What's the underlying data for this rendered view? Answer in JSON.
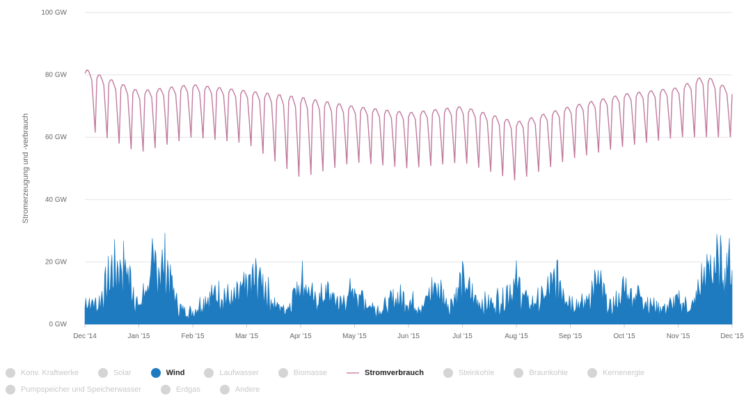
{
  "chart_data": {
    "type": "area",
    "ylabel": "Stromerzeugung und -verbrauch",
    "y_ticks": [
      "0 GW",
      "20 GW",
      "40 GW",
      "60 GW",
      "80 GW",
      "100 GW"
    ],
    "ylim": [
      0,
      100
    ],
    "x_ticks": [
      "Dec '14",
      "Jan '15",
      "Feb '15",
      "Mar '15",
      "Apr '15",
      "May '15",
      "Jun '15",
      "Jul '15",
      "Aug '15",
      "Sep '15",
      "Oct '15",
      "Nov '15",
      "Dec '15"
    ],
    "grid": true,
    "series": [
      {
        "name": "Wind",
        "kind": "area",
        "color": "#1f7bbf",
        "x_month_points": [
          0,
          0.25,
          0.5,
          0.75,
          1,
          1.25,
          1.5,
          1.75,
          2,
          2.25,
          2.5,
          2.75,
          3,
          3.25,
          3.5,
          3.75,
          4,
          4.25,
          4.5,
          4.75,
          5,
          5.25,
          5.5,
          5.75,
          6,
          6.25,
          6.5,
          6.75,
          7,
          7.25,
          7.5,
          7.75,
          8,
          8.25,
          8.5,
          8.75,
          9,
          9.25,
          9.5,
          9.75,
          10,
          10.25,
          10.5,
          10.75,
          11,
          11.25,
          11.5,
          11.75,
          12
        ],
        "values": [
          12,
          10,
          27,
          30,
          8,
          28,
          30,
          8,
          6,
          14,
          16,
          12,
          20,
          24,
          10,
          8,
          25,
          12,
          16,
          10,
          18,
          10,
          8,
          14,
          12,
          9,
          20,
          10,
          22,
          12,
          10,
          14,
          21,
          10,
          14,
          23,
          12,
          10,
          22,
          8,
          18,
          16,
          10,
          8,
          12,
          8,
          26,
          31,
          32
        ]
      },
      {
        "name": "Stromverbrauch",
        "kind": "line",
        "color": "#c0799d",
        "x_month_points": [
          0,
          1,
          2,
          3,
          4,
          5,
          6,
          7,
          8,
          9,
          10,
          11,
          11.5,
          12
        ],
        "upper_values": [
          82,
          75,
          77,
          75,
          73,
          70,
          68,
          70,
          65,
          70,
          74,
          76,
          80,
          75
        ],
        "lower_values": [
          63,
          55,
          60,
          58,
          47,
          52,
          50,
          52,
          46,
          53,
          57,
          60,
          60,
          60
        ]
      }
    ],
    "legend_position": "bottom"
  },
  "legend": {
    "items": [
      {
        "label": "Konv. Kraftwerke",
        "type": "dot",
        "active": false
      },
      {
        "label": "Solar",
        "type": "dot",
        "active": false
      },
      {
        "label": "Wind",
        "type": "dot",
        "active": true
      },
      {
        "label": "Laufwasser",
        "type": "dot",
        "active": false
      },
      {
        "label": "Biomasse",
        "type": "dot",
        "active": false
      },
      {
        "label": "Stromverbrauch",
        "type": "line",
        "active": true
      },
      {
        "label": "Steinkohle",
        "type": "dot",
        "active": false
      },
      {
        "label": "Braunkohle",
        "type": "dot",
        "active": false
      },
      {
        "label": "Kernenergie",
        "type": "dot",
        "active": false
      },
      {
        "label": "Pumpspeicher und Speicherwasser",
        "type": "dot",
        "active": false
      },
      {
        "label": "Erdgas",
        "type": "dot",
        "active": false
      },
      {
        "label": "Andere",
        "type": "dot",
        "active": false
      }
    ]
  }
}
